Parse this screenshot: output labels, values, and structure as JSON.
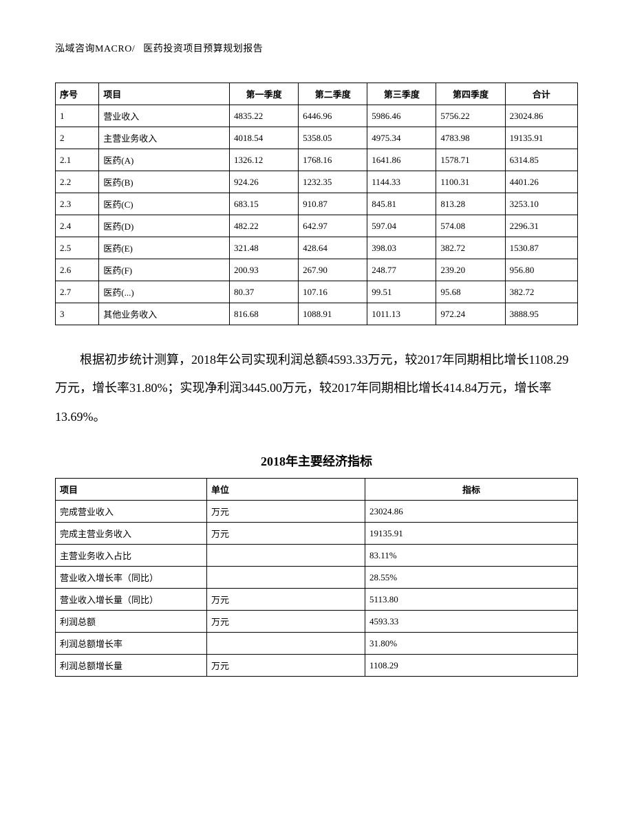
{
  "header": {
    "left": "泓域咨询MACRO/",
    "right": "医药投资项目预算规划报告"
  },
  "table1": {
    "columns": [
      "序号",
      "项目",
      "第一季度",
      "第二季度",
      "第三季度",
      "第四季度",
      "合计"
    ],
    "rows": [
      [
        "1",
        "营业收入",
        "4835.22",
        "6446.96",
        "5986.46",
        "5756.22",
        "23024.86"
      ],
      [
        "2",
        "主营业务收入",
        "4018.54",
        "5358.05",
        "4975.34",
        "4783.98",
        "19135.91"
      ],
      [
        "2.1",
        "医药(A)",
        "1326.12",
        "1768.16",
        "1641.86",
        "1578.71",
        "6314.85"
      ],
      [
        "2.2",
        "医药(B)",
        "924.26",
        "1232.35",
        "1144.33",
        "1100.31",
        "4401.26"
      ],
      [
        "2.3",
        "医药(C)",
        "683.15",
        "910.87",
        "845.81",
        "813.28",
        "3253.10"
      ],
      [
        "2.4",
        "医药(D)",
        "482.22",
        "642.97",
        "597.04",
        "574.08",
        "2296.31"
      ],
      [
        "2.5",
        "医药(E)",
        "321.48",
        "428.64",
        "398.03",
        "382.72",
        "1530.87"
      ],
      [
        "2.6",
        "医药(F)",
        "200.93",
        "267.90",
        "248.77",
        "239.20",
        "956.80"
      ],
      [
        "2.7",
        "医药(...)",
        "80.37",
        "107.16",
        "99.51",
        "95.68",
        "382.72"
      ],
      [
        "3",
        "其他业务收入",
        "816.68",
        "1088.91",
        "1011.13",
        "972.24",
        "3888.95"
      ]
    ]
  },
  "paragraph": "根据初步统计测算，2018年公司实现利润总额4593.33万元，较2017年同期相比增长1108.29万元，增长率31.80%；实现净利润3445.00万元，较2017年同期相比增长414.84万元，增长率13.69%。",
  "table2": {
    "title": "2018年主要经济指标",
    "columns": [
      "项目",
      "单位",
      "指标"
    ],
    "rows": [
      [
        "完成营业收入",
        "万元",
        "23024.86"
      ],
      [
        "完成主营业务收入",
        "万元",
        "19135.91"
      ],
      [
        "主营业务收入占比",
        "",
        "83.11%"
      ],
      [
        "营业收入增长率（同比）",
        "",
        "28.55%"
      ],
      [
        "营业收入增长量（同比）",
        "万元",
        "5113.80"
      ],
      [
        "利润总额",
        "万元",
        "4593.33"
      ],
      [
        "利润总额增长率",
        "",
        "31.80%"
      ],
      [
        "利润总额增长量",
        "万元",
        "1108.29"
      ]
    ]
  }
}
